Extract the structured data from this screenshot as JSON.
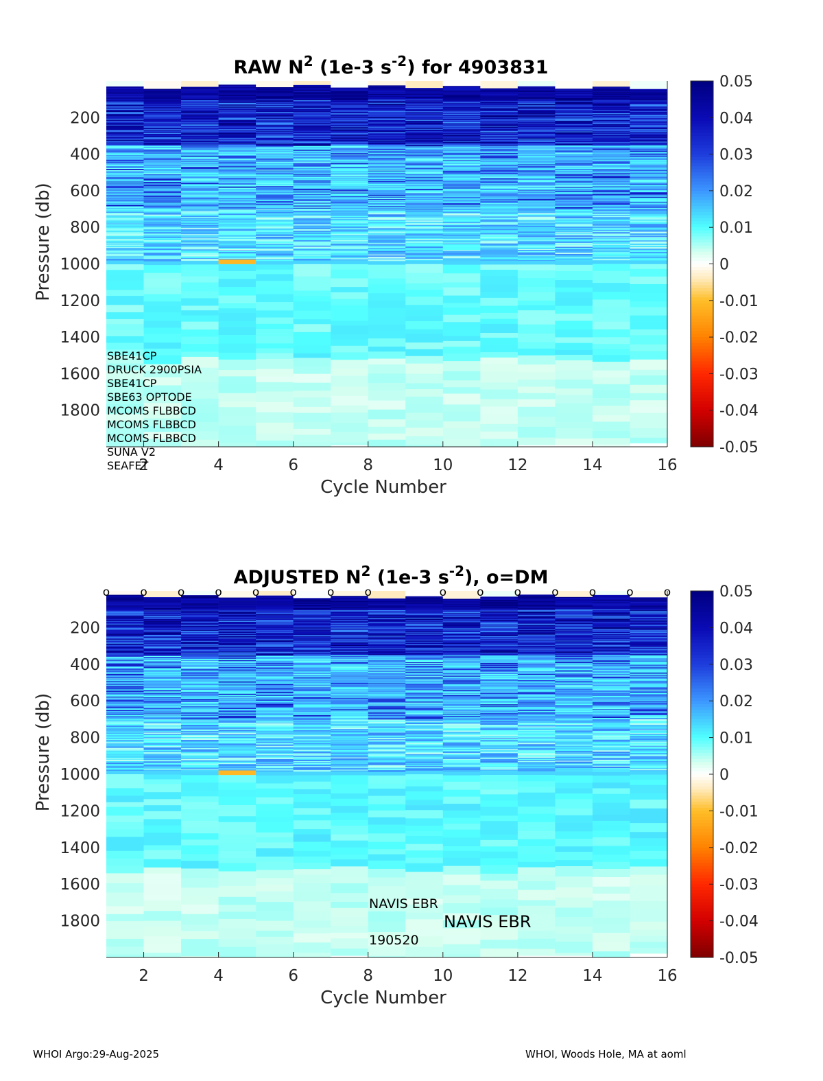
{
  "footer": {
    "left": "WHOI Argo:29-Aug-2025",
    "right": "WHOI, Woods Hole, MA at aoml"
  },
  "colors": {
    "axis": "#262626",
    "text": "#000000",
    "background": "#ffffff",
    "colormap": [
      "#7f0000",
      "#ff0000",
      "#ff8000",
      "#ffd060",
      "#fff0d0",
      "#ffffff",
      "#d8fff4",
      "#40ffff",
      "#4090ff",
      "#2020d0",
      "#00008f"
    ]
  },
  "chart_data": [
    {
      "type": "heatmap",
      "title_prefix": "RAW N",
      "title_sup1": "2",
      "title_mid": " (1e-3 s",
      "title_sup2": "-2",
      "title_suffix": ") for 4903831",
      "xlabel": "Cycle Number",
      "ylabel": "Pressure (db)",
      "xlim": [
        1,
        16
      ],
      "ylim": [
        2000,
        0
      ],
      "x_ticks": [
        "2",
        "4",
        "6",
        "8",
        "10",
        "12",
        "14",
        "16"
      ],
      "y_ticks": [
        "200",
        "400",
        "600",
        "800",
        "1000",
        "1200",
        "1400",
        "1600",
        "1800"
      ],
      "colorbar_ticks": [
        "0.05",
        "0.04",
        "0.03",
        "0.02",
        "0.01",
        "0",
        "-0.01",
        "-0.02",
        "-0.03",
        "-0.04",
        "-0.05"
      ],
      "clim": [
        -0.05,
        0.05
      ],
      "cycles": [
        1,
        2,
        3,
        4,
        5,
        6,
        7,
        8,
        9,
        10,
        11,
        12,
        13,
        14,
        15
      ],
      "max_pressure": [
        2000,
        2000,
        2000,
        2000,
        2000,
        2000,
        1990,
        2000,
        2000,
        2000,
        2000,
        1990,
        1990,
        2000,
        1980
      ],
      "seed": 7,
      "sensors": [
        "SBE41CP",
        "DRUCK 2900PSIA",
        "SBE41CP",
        "SBE63 OPTODE",
        "MCOMS FLBBCD",
        "MCOMS FLBBCD",
        "MCOMS FLBBCD",
        "SUNA V2",
        "SEAFET"
      ],
      "dm_markers": []
    },
    {
      "type": "heatmap",
      "title_prefix": "ADJUSTED N",
      "title_sup1": "2",
      "title_mid": " (1e-3 s",
      "title_sup2": "-2",
      "title_suffix": "), o=DM",
      "xlabel": "Cycle Number",
      "ylabel": "Pressure (db)",
      "xlim": [
        1,
        16
      ],
      "ylim": [
        2000,
        0
      ],
      "x_ticks": [
        "2",
        "4",
        "6",
        "8",
        "10",
        "12",
        "14",
        "16"
      ],
      "y_ticks": [
        "200",
        "400",
        "600",
        "800",
        "1000",
        "1200",
        "1400",
        "1600",
        "1800"
      ],
      "colorbar_ticks": [
        "0.05",
        "0.04",
        "0.03",
        "0.02",
        "0.01",
        "0",
        "-0.01",
        "-0.02",
        "-0.03",
        "-0.04",
        "-0.05"
      ],
      "clim": [
        -0.05,
        0.05
      ],
      "cycles": [
        1,
        2,
        3,
        4,
        5,
        6,
        7,
        8,
        9,
        10,
        11,
        12,
        13,
        14,
        15
      ],
      "max_pressure": [
        2000,
        2000,
        2000,
        2000,
        2000,
        2000,
        1990,
        2000,
        2000,
        2000,
        2000,
        1990,
        1990,
        2000,
        1980
      ],
      "seed": 11,
      "dm_marker_symbol": "o",
      "dm_markers": [
        1,
        2,
        3,
        4,
        5,
        6,
        7,
        8,
        10,
        11,
        12,
        13,
        14,
        15,
        16
      ],
      "annotations": {
        "platform": "NAVIS EBR",
        "platform_large": "NAVIS EBR",
        "serial": "190520"
      }
    }
  ]
}
